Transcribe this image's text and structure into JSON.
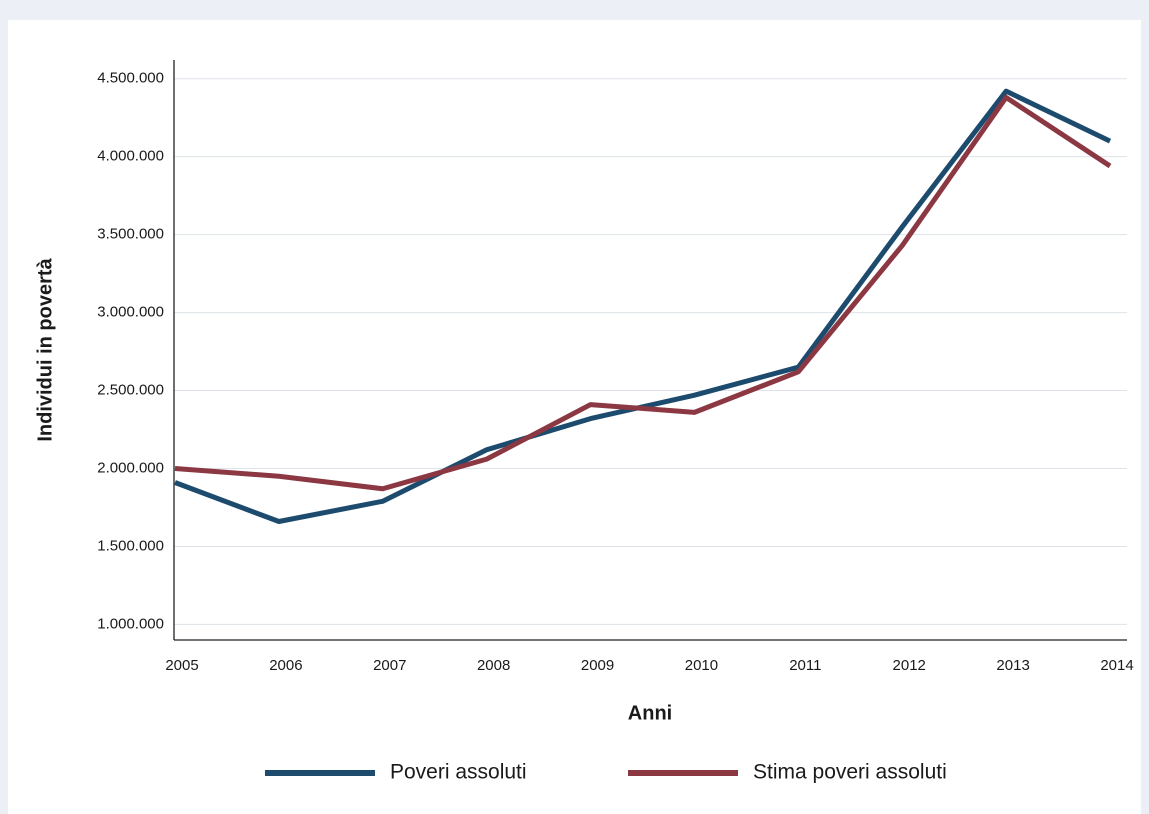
{
  "chart_data": {
    "type": "line",
    "x_label": "Anni",
    "y_label": "Individui in povertà",
    "x": [
      2005,
      2006,
      2007,
      2008,
      2009,
      2010,
      2011,
      2012,
      2013,
      2014
    ],
    "xlim": [
      2005,
      2014
    ],
    "xticks": [
      2005,
      2006,
      2007,
      2008,
      2009,
      2010,
      2011,
      2012,
      2013,
      2014
    ],
    "ylim": [
      900000,
      4620000
    ],
    "yticks": [
      {
        "value": 1000000,
        "label": "1.000.000"
      },
      {
        "value": 1500000,
        "label": "1.500.000"
      },
      {
        "value": 2000000,
        "label": "2.000.000"
      },
      {
        "value": 2500000,
        "label": "2.500.000"
      },
      {
        "value": 3000000,
        "label": "3.000.000"
      },
      {
        "value": 3500000,
        "label": "3.500.000"
      },
      {
        "value": 4000000,
        "label": "4.000.000"
      },
      {
        "value": 4500000,
        "label": "4.500.000"
      }
    ],
    "grid": true,
    "legend": "bottom",
    "series": [
      {
        "name": "Poveri assoluti",
        "color": "#1d4b6e",
        "values": [
          1910000,
          1660000,
          1790000,
          2120000,
          2320000,
          2470000,
          2650000,
          3550000,
          4420000,
          4100000
        ]
      },
      {
        "name": "Stima poveri assoluti",
        "color": "#8c3843",
        "values": [
          2000000,
          1950000,
          1870000,
          2060000,
          2410000,
          2360000,
          2620000,
          3430000,
          4380000,
          3940000
        ]
      }
    ]
  }
}
